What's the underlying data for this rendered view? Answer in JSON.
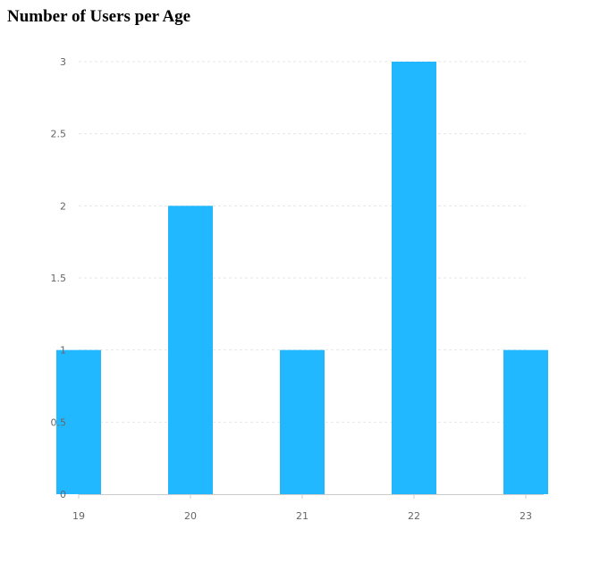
{
  "title": "Number of Users per Age",
  "chart_data": {
    "type": "bar",
    "title": "Number of Users per Age",
    "xlabel": "",
    "ylabel": "",
    "categories": [
      "19",
      "20",
      "21",
      "22",
      "23"
    ],
    "values": [
      1,
      2,
      1,
      3,
      1
    ],
    "x_values": [
      19,
      20,
      21,
      22,
      23
    ],
    "xlim": [
      19,
      23
    ],
    "ylim": [
      0,
      3
    ],
    "y_ticks": [
      0,
      0.5,
      1,
      1.5,
      2,
      2.5,
      3
    ],
    "y_tick_labels": [
      "0",
      "0.5",
      "1",
      "1.5",
      "2",
      "2.5",
      "3"
    ],
    "x_ticks": [
      19,
      20,
      21,
      22,
      23
    ],
    "x_tick_labels": [
      "19",
      "20",
      "21",
      "22",
      "23"
    ],
    "grid": "horizontal-dashed",
    "legend": "none",
    "colors": {
      "bar": "#22b8ff",
      "grid": "#e6e6e6",
      "axis": "#cccccc",
      "tick_text": "#666666"
    }
  }
}
